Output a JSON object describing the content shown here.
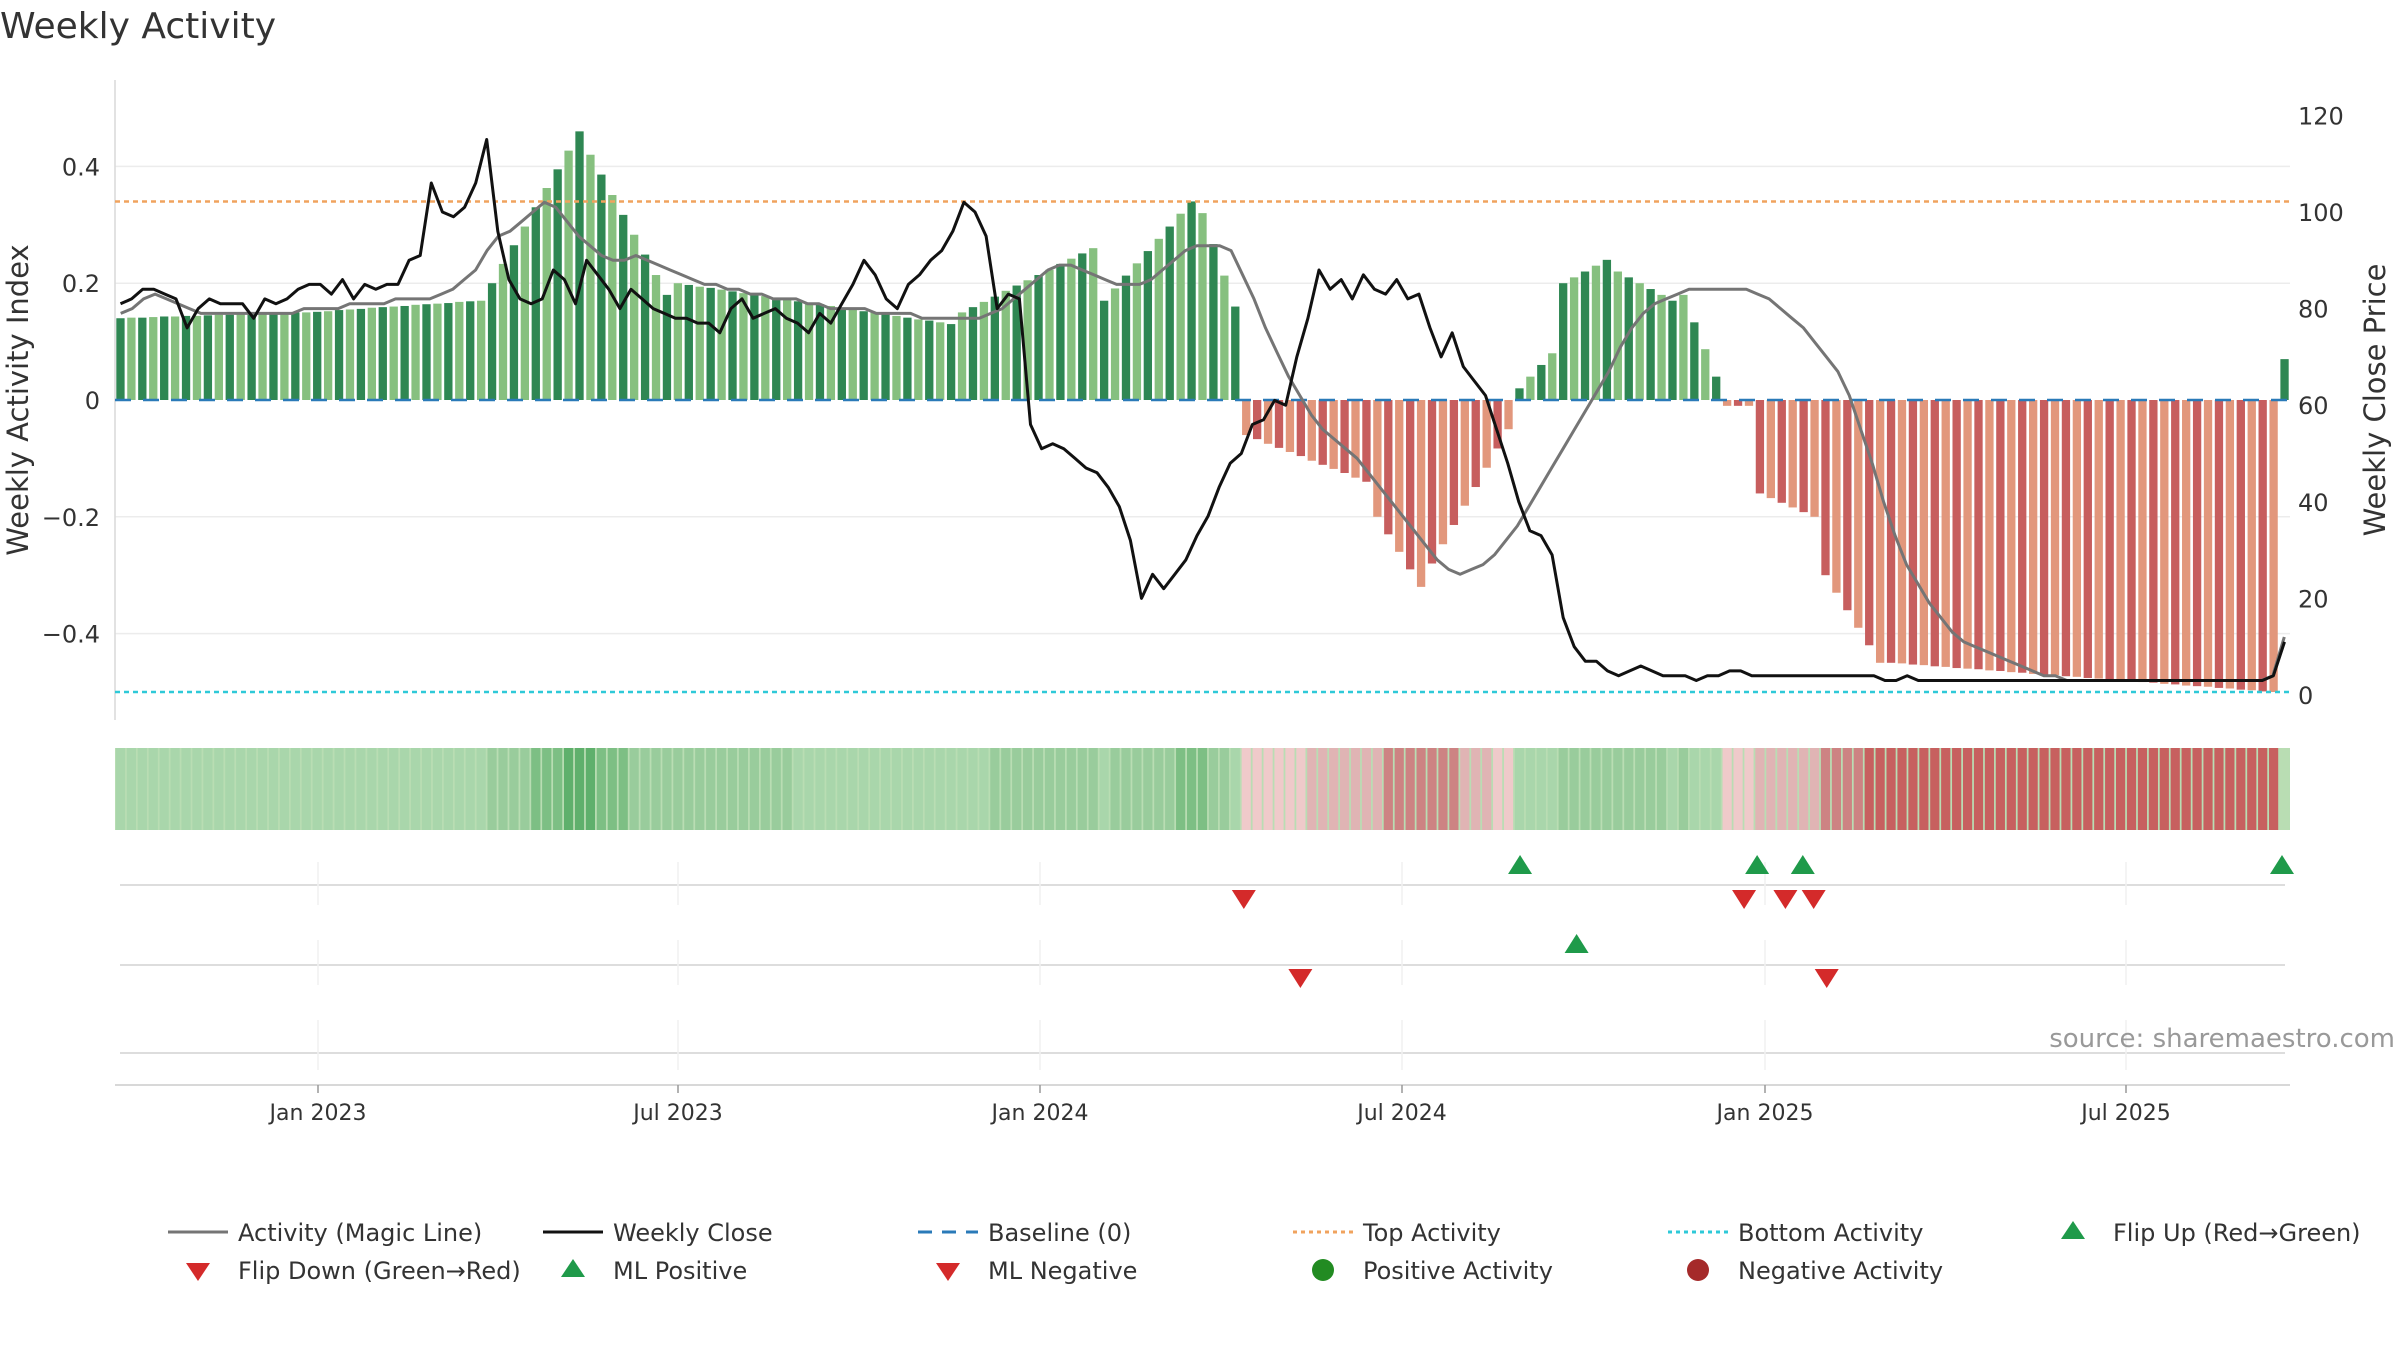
{
  "title": "Weekly Activity",
  "source": "source: sharemaestro.com",
  "colors": {
    "pos_dark": "#2f8753",
    "pos_light": "#86c07f",
    "neg_dark": "#c75e5e",
    "neg_light": "#e2977c",
    "magic_line": "#757575",
    "close_line": "#111111",
    "baseline": "#2a7ab8",
    "top_activity": "#f0a35e",
    "bottom_activity": "#2ec9d8",
    "marker_up": "#1f9a4a",
    "marker_down": "#d42a2a",
    "dot_positive": "#228b22",
    "dot_negative": "#a52a2a"
  },
  "chart_data": {
    "type": "bar",
    "title": "Weekly Activity",
    "ylabel": "Weekly Activity Index",
    "y2label": "Weekly Close Price",
    "ylim": [
      -0.55,
      0.55
    ],
    "y2lim": [
      -3,
      127
    ],
    "yticks": [
      "0.4",
      "0.2",
      "0",
      "−0.2",
      "−0.4"
    ],
    "y2ticks": [
      "120",
      "100",
      "80",
      "60",
      "40",
      "20",
      "0"
    ],
    "xticks": [
      "Jan 2023",
      "Jul 2023",
      "Jan 2024",
      "Jul 2024",
      "Jan 2025",
      "Jul 2025"
    ],
    "grid": true,
    "reference_lines": {
      "top_activity": 0.34,
      "bottom_activity": -0.5,
      "baseline": 0
    },
    "bar_segments": [
      {
        "weeks": 17,
        "from": 0.14,
        "to": 0.15
      },
      {
        "weeks": 17,
        "from": 0.15,
        "to": 0.17
      },
      {
        "weeks": 9,
        "from": 0.2,
        "to": 0.46
      },
      {
        "weeks": 8,
        "from": 0.42,
        "to": 0.18
      },
      {
        "weeks": 26,
        "from": 0.2,
        "to": 0.13
      },
      {
        "weeks": 13,
        "from": 0.15,
        "to": 0.26
      },
      {
        "weeks": 9,
        "from": 0.17,
        "to": 0.34
      },
      {
        "weeks": 4,
        "from": 0.32,
        "to": 0.16
      },
      {
        "weeks": 12,
        "from": -0.06,
        "to": -0.14
      },
      {
        "weeks": 5,
        "from": -0.2,
        "to": -0.32
      },
      {
        "weeks": 8,
        "from": -0.28,
        "to": -0.05
      },
      {
        "weeks": 4,
        "from": 0.02,
        "to": 0.08
      },
      {
        "weeks": 5,
        "from": 0.2,
        "to": 0.24
      },
      {
        "weeks": 6,
        "from": 0.22,
        "to": 0.17
      },
      {
        "weeks": 4,
        "from": 0.18,
        "to": 0.04
      },
      {
        "weeks": 3,
        "from": -0.01,
        "to": -0.01
      },
      {
        "weeks": 6,
        "from": -0.16,
        "to": -0.2
      },
      {
        "weeks": 6,
        "from": -0.3,
        "to": -0.45
      },
      {
        "weeks": 36,
        "from": -0.45,
        "to": -0.5
      },
      {
        "weeks": 1,
        "from": 0.07,
        "to": 0.07
      }
    ],
    "series": [
      {
        "name": "Activity (Magic Line)",
        "axis": "right",
        "values": [
          79,
          80,
          82,
          83,
          82,
          81,
          80,
          79,
          79,
          79,
          79,
          79,
          79,
          79,
          79,
          79,
          80,
          80,
          80,
          80,
          81,
          81,
          81,
          81,
          82,
          82,
          82,
          82,
          83,
          84,
          86,
          88,
          92,
          95,
          96,
          98,
          100,
          102,
          101,
          98,
          95,
          93,
          91,
          90,
          90,
          91,
          90,
          89,
          88,
          87,
          86,
          85,
          85,
          84,
          84,
          83,
          83,
          82,
          82,
          82,
          81,
          81,
          80,
          80,
          80,
          80,
          79,
          79,
          79,
          79,
          78,
          78,
          78,
          78,
          78,
          78,
          79,
          80,
          82,
          84,
          86,
          88,
          89,
          89,
          88,
          87,
          86,
          85,
          85,
          85,
          86,
          88,
          90,
          92,
          93,
          93,
          93,
          92,
          87,
          82,
          76,
          71,
          66,
          62,
          58,
          55,
          53,
          51,
          49,
          46,
          43,
          40,
          37,
          34,
          31,
          28,
          26,
          25,
          26,
          27,
          29,
          32,
          35,
          39,
          43,
          47,
          51,
          55,
          59,
          63,
          67,
          72,
          76,
          79,
          81,
          82,
          83,
          84,
          84,
          84,
          84,
          84,
          84,
          83,
          82,
          80,
          78,
          76,
          73,
          70,
          67,
          62,
          55,
          48,
          40,
          33,
          27,
          23,
          19,
          16,
          13,
          11,
          10,
          9,
          8,
          7,
          6,
          5,
          4,
          4,
          3,
          3,
          3,
          3,
          3,
          3,
          3,
          3,
          3,
          3,
          3,
          3,
          3,
          3,
          3,
          3,
          3,
          3,
          4,
          12
        ]
      },
      {
        "name": "Weekly Close",
        "axis": "right",
        "values": [
          81,
          82,
          84,
          84,
          83,
          82,
          76,
          80,
          82,
          81,
          81,
          81,
          78,
          82,
          81,
          82,
          84,
          85,
          85,
          83,
          86,
          82,
          85,
          84,
          85,
          85,
          90,
          91,
          106,
          100,
          99,
          101,
          106,
          115,
          96,
          86,
          82,
          81,
          82,
          88,
          86,
          81,
          90,
          87,
          84,
          80,
          84,
          82,
          80,
          79,
          78,
          78,
          77,
          77,
          75,
          80,
          82,
          78,
          79,
          80,
          78,
          77,
          75,
          79,
          77,
          81,
          85,
          90,
          87,
          82,
          80,
          85,
          87,
          90,
          92,
          96,
          102,
          100,
          95,
          80,
          83,
          82,
          56,
          51,
          52,
          51,
          49,
          47,
          46,
          43,
          39,
          32,
          20,
          25,
          22,
          25,
          28,
          33,
          37,
          43,
          48,
          50,
          56,
          57,
          61,
          60,
          70,
          78,
          88,
          84,
          86,
          82,
          87,
          84,
          83,
          86,
          82,
          83,
          76,
          70,
          75,
          68,
          65,
          62,
          55,
          48,
          40,
          34,
          33,
          29,
          16,
          10,
          7,
          7,
          5,
          4,
          5,
          6,
          5,
          4,
          4,
          4,
          3,
          4,
          4,
          5,
          5,
          4,
          4,
          4,
          4,
          4,
          4,
          4,
          4,
          4,
          4,
          4,
          4,
          3,
          3,
          4,
          3,
          3,
          3,
          3,
          3,
          3,
          3,
          3,
          3,
          3,
          3,
          3,
          3,
          3,
          3,
          3,
          3,
          3,
          3,
          3,
          3,
          3,
          3,
          3,
          3,
          3,
          3,
          3,
          3,
          3,
          3,
          3,
          4,
          11
        ]
      },
      {
        "name": "Baseline (0)",
        "values": []
      },
      {
        "name": "Top Activity",
        "values": []
      },
      {
        "name": "Bottom Activity",
        "values": []
      },
      {
        "name": "Flip Up (Red→Green)",
        "marker_xticks_fraction": [
          0.646,
          0.755,
          0.776,
          1.0
        ]
      },
      {
        "name": "Flip Down (Green→Red)",
        "marker_xticks_fraction": [
          0.519,
          0.749,
          0.768,
          0.781
        ]
      },
      {
        "name": "ML Positive",
        "marker_xticks_fraction": [
          0.672
        ]
      },
      {
        "name": "ML Negative",
        "marker_xticks_fraction": [
          0.545,
          0.787
        ]
      },
      {
        "name": "Positive Activity",
        "values": []
      },
      {
        "name": "Negative Activity",
        "values": []
      }
    ]
  },
  "legend": [
    {
      "label": "Activity (Magic Line)",
      "kind": "line-solid-gray"
    },
    {
      "label": "Weekly Close",
      "kind": "line-solid-black"
    },
    {
      "label": "Baseline (0)",
      "kind": "line-dash-blue"
    },
    {
      "label": "Top Activity",
      "kind": "line-dot-orange"
    },
    {
      "label": "Bottom Activity",
      "kind": "line-dot-cyan"
    },
    {
      "label": "Flip Up (Red→Green)",
      "kind": "tri-up-green"
    },
    {
      "label": "Flip Down (Green→Red)",
      "kind": "tri-down-red"
    },
    {
      "label": "ML Positive",
      "kind": "tri-up-green"
    },
    {
      "label": "ML Negative",
      "kind": "tri-down-red"
    },
    {
      "label": "Positive Activity",
      "kind": "dot-green"
    },
    {
      "label": "Negative Activity",
      "kind": "dot-red"
    }
  ]
}
